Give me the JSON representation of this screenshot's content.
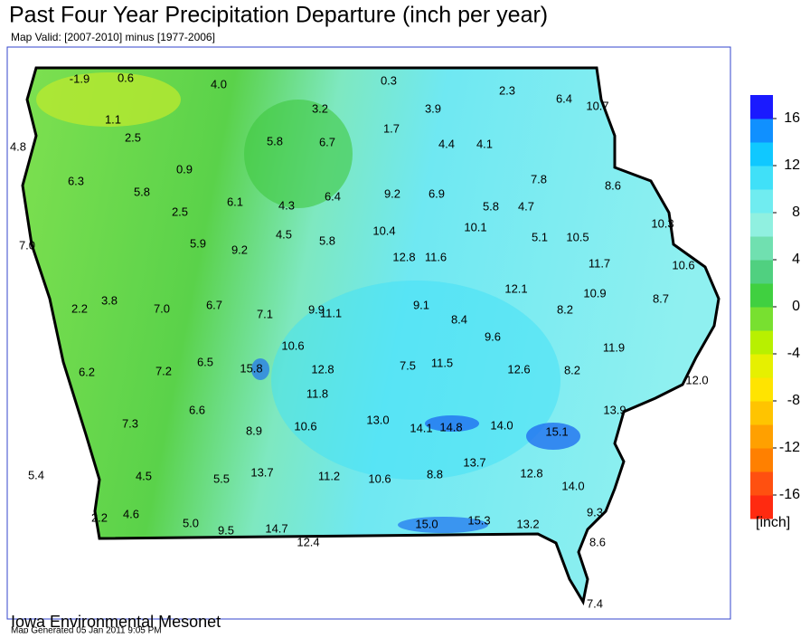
{
  "title": "Past Four Year Precipitation Departure (inch per year)",
  "subtitle": "Map Valid: [2007-2010] minus [1977-2006]",
  "labels": [
    "-1.9",
    "0.6",
    "4.0",
    "0.3",
    "2.3",
    "6.4",
    "10.7",
    "1.1",
    "3.2",
    "3.9",
    "1.7",
    "2.5",
    "5.8",
    "6.7",
    "4.4",
    "4.1",
    "4.8",
    "0.9",
    "7.8",
    "6.3",
    "5.8",
    "6.1",
    "4.3",
    "6.4",
    "9.2",
    "6.9",
    "5.8",
    "4.7",
    "8.6",
    "2.5",
    "10.3",
    "5.9",
    "9.2",
    "4.5",
    "5.8",
    "10.4",
    "10.1",
    "5.1",
    "10.5",
    "7.0",
    "12.8",
    "11.6",
    "11.7",
    "10.6",
    "12.1",
    "10.9",
    "8.7",
    "3.8",
    "7.0",
    "6.7",
    "7.1",
    "9.9",
    "11.1",
    "9.1",
    "8.2",
    "2.2",
    "8.4",
    "9.6",
    "10.6",
    "11.9",
    "6.5",
    "15.8",
    "12.8",
    "7.5",
    "11.5",
    "12.6",
    "8.2",
    "6.2",
    "7.2",
    "12.0",
    "11.8",
    "6.6",
    "13.0",
    "13.9",
    "7.3",
    "8.9",
    "10.6",
    "14.1",
    "14.8",
    "14.0",
    "15.1",
    "13.7",
    "5.4",
    "4.5",
    "5.5",
    "13.7",
    "11.2",
    "10.6",
    "8.8",
    "12.8",
    "14.0",
    "9.3",
    "2.2",
    "4.6",
    "5.0",
    "9.5",
    "14.7",
    "15.0",
    "15.3",
    "13.2",
    "12.4",
    "8.6",
    "7.4"
  ],
  "colorbar": {
    "lim": [
      -18,
      18
    ],
    "ticks": [
      16,
      12,
      8,
      4,
      0,
      -4,
      -8,
      -12,
      -16
    ],
    "unit": "[inch]",
    "colors": [
      "#ff2a10",
      "#ff5010",
      "#ff8000",
      "#ffa000",
      "#ffc400",
      "#ffe400",
      "#e6f000",
      "#b8f000",
      "#78e030",
      "#40d040",
      "#50d080",
      "#70e0b0",
      "#90f0e0",
      "#70ecf0",
      "#40e0f8",
      "#10c8ff",
      "#1090ff",
      "#1a1aff"
    ]
  },
  "footer": {
    "org": "Iowa Environmental Mesonet",
    "generated": "Map Generated 05 Jan 2011 9:05 PM"
  }
}
